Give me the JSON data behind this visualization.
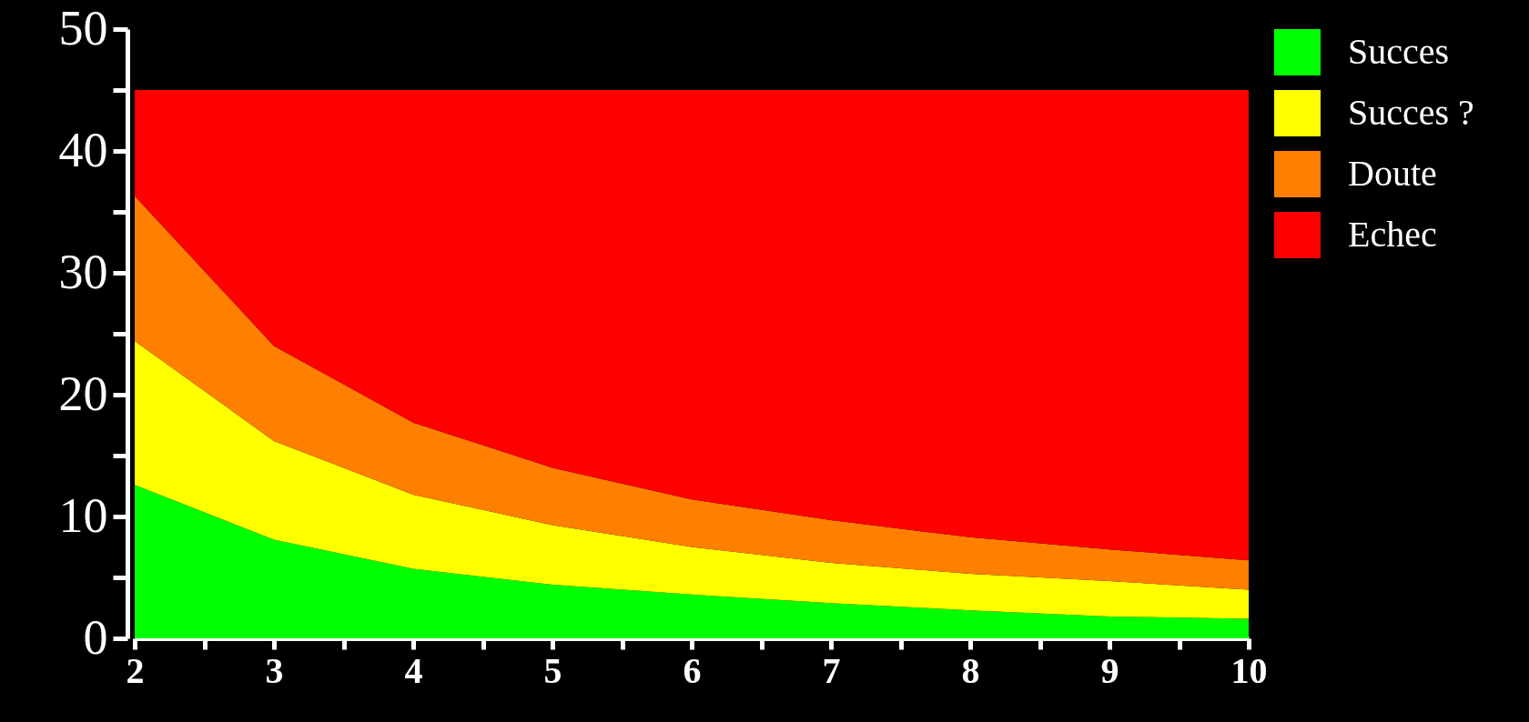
{
  "chart_data": {
    "type": "area",
    "stacked": true,
    "x": [
      2,
      3,
      4,
      5,
      6,
      7,
      8,
      9,
      10
    ],
    "series": [
      {
        "name": "Succes",
        "color": "#00ff00",
        "values": [
          12.6,
          8.1,
          5.7,
          4.4,
          3.6,
          2.9,
          2.3,
          1.8,
          1.6
        ]
      },
      {
        "name": "Succes ?",
        "color": "#ffff00",
        "values": [
          11.8,
          8.1,
          6.1,
          4.9,
          3.9,
          3.3,
          3.0,
          2.9,
          2.4
        ]
      },
      {
        "name": "Doute",
        "color": "#ff8000",
        "values": [
          11.9,
          7.8,
          5.9,
          4.7,
          3.9,
          3.5,
          3.0,
          2.6,
          2.4
        ]
      },
      {
        "name": "Echec",
        "color": "#ff0000",
        "values": [
          8.7,
          21.0,
          27.3,
          31.0,
          33.6,
          35.3,
          36.7,
          37.7,
          38.6
        ]
      }
    ],
    "xlim": [
      2,
      10
    ],
    "xticks": [
      2,
      {
        "value": 2.5,
        "label": null
      },
      3,
      {
        "value": 3.5,
        "label": null
      },
      4,
      {
        "value": 4.5,
        "label": null
      },
      5,
      {
        "value": 5.5,
        "label": null
      },
      6,
      {
        "value": 6.5,
        "label": null
      },
      7,
      {
        "value": 7.5,
        "label": null
      },
      8,
      {
        "value": 8.5,
        "label": null
      },
      9,
      {
        "value": 9.5,
        "label": null
      },
      10
    ],
    "ylim": [
      0,
      50
    ],
    "yticks": [
      0,
      {
        "value": 5,
        "label": null
      },
      10,
      {
        "value": 15,
        "label": null
      },
      20,
      {
        "value": 25,
        "label": null
      },
      30,
      {
        "value": 35,
        "label": null
      },
      40,
      {
        "value": 45,
        "label": null
      },
      50
    ],
    "legend": "right"
  }
}
